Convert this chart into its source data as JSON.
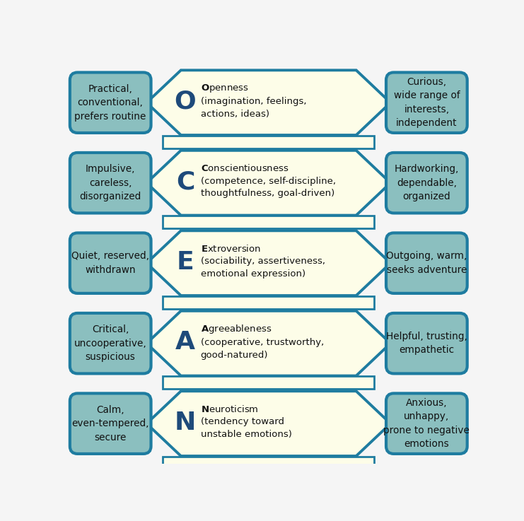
{
  "traits": [
    {
      "letter": "O",
      "name": "Openness",
      "sub": "(imagination, feelings,\nactions, ideas)",
      "low": "Practical,\nconventional,\nprefers routine",
      "high": "Curious,\nwide range of\ninterests,\nindependent"
    },
    {
      "letter": "C",
      "name": "Conscientiousness",
      "sub": "(competence, self-discipline,\nthoughtfulness, goal-driven)",
      "low": "Impulsive,\ncareless,\ndisorganized",
      "high": "Hardworking,\ndependable,\norganized"
    },
    {
      "letter": "E",
      "name": "Extroversion",
      "sub": "(sociability, assertiveness,\nemotional expression)",
      "low": "Quiet, reserved,\nwithdrawn",
      "high": "Outgoing, warm,\nseeks adventure"
    },
    {
      "letter": "A",
      "name": "Agreeableness",
      "sub": "(cooperative, trustworthy,\ngood-natured)",
      "low": "Critical,\nuncooperative,\nsuspicious",
      "high": "Helpful, trusting,\nempathetic"
    },
    {
      "letter": "N",
      "name": "Neuroticism",
      "sub": "(tendency toward\nunstable emotions)",
      "low": "Calm,\neven-tempered,\nsecure",
      "high": "Anxious,\nunhappy,\nprone to negative\nemotions"
    }
  ],
  "arrow_fill": "#FDFDE8",
  "arrow_stroke": "#1E7CA0",
  "box_fill": "#8BBFBF",
  "box_stroke": "#1E7CA0",
  "box_text_color": "#111111",
  "arrow_text_color": "#111111",
  "letter_color": "#1E4A7A",
  "fig_bg": "#f5f5f5"
}
